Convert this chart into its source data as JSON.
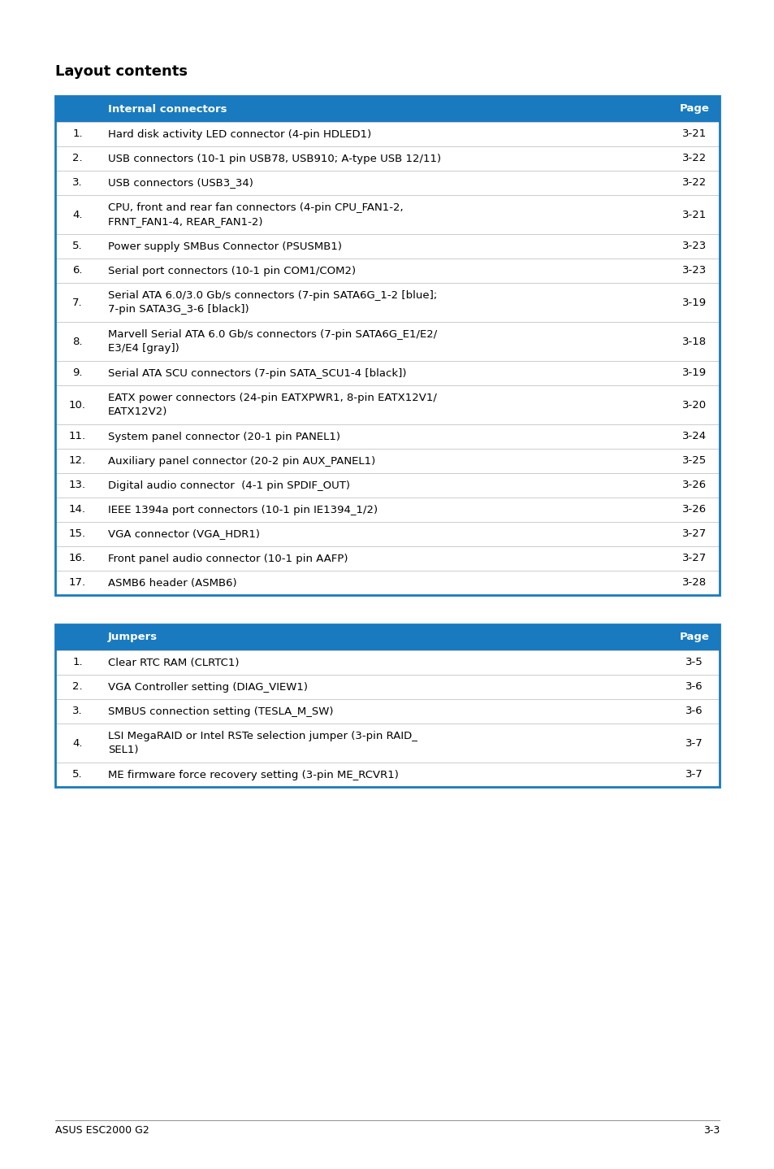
{
  "title": "Layout contents",
  "header_bg": "#1a7abf",
  "header_text_color": "#ffffff",
  "border_color": "#1a7abf",
  "divider_color": "#cccccc",
  "text_color": "#000000",
  "footer_left": "ASUS ESC2000 G2",
  "footer_right": "3-3",
  "table1_header": [
    "Internal connectors",
    "Page"
  ],
  "table1_rows": [
    [
      "1.",
      "Hard disk activity LED connector (4-pin HDLED1)",
      "3-21"
    ],
    [
      "2.",
      "USB connectors (10-1 pin USB78, USB910; A-type USB 12/11)",
      "3-22"
    ],
    [
      "3.",
      "USB connectors (USB3_34)",
      "3-22"
    ],
    [
      "4.",
      "CPU, front and rear fan connectors (4-pin CPU_FAN1-2,\nFRNT_FAN1-4, REAR_FAN1-2)",
      "3-21"
    ],
    [
      "5.",
      "Power supply SMBus Connector (PSUSMB1)",
      "3-23"
    ],
    [
      "6.",
      "Serial port connectors (10-1 pin COM1/COM2)",
      "3-23"
    ],
    [
      "7.",
      "Serial ATA 6.0/3.0 Gb/s connectors (7-pin SATA6G_1-2 [blue];\n7-pin SATA3G_3-6 [black])",
      "3-19"
    ],
    [
      "8.",
      "Marvell Serial ATA 6.0 Gb/s connectors (7-pin SATA6G_E1/E2/\nE3/E4 [gray])",
      "3-18"
    ],
    [
      "9.",
      "Serial ATA SCU connectors (7-pin SATA_SCU1-4 [black])",
      "3-19"
    ],
    [
      "10.",
      "EATX power connectors (24-pin EATXPWR1, 8-pin EATX12V1/\nEATX12V2)",
      "3-20"
    ],
    [
      "11.",
      "System panel connector (20-1 pin PANEL1)",
      "3-24"
    ],
    [
      "12.",
      "Auxiliary panel connector (20-2 pin AUX_PANEL1)",
      "3-25"
    ],
    [
      "13.",
      "Digital audio connector  (4-1 pin SPDIF_OUT)",
      "3-26"
    ],
    [
      "14.",
      "IEEE 1394a port connectors (10-1 pin IE1394_1/2)",
      "3-26"
    ],
    [
      "15.",
      "VGA connector (VGA_HDR1)",
      "3-27"
    ],
    [
      "16.",
      "Front panel audio connector (10-1 pin AAFP)",
      "3-27"
    ],
    [
      "17.",
      "ASMB6 header (ASMB6)",
      "3-28"
    ]
  ],
  "table2_header": [
    "Jumpers",
    "Page"
  ],
  "table2_rows": [
    [
      "1.",
      "Clear RTC RAM (CLRTC1)",
      "3-5"
    ],
    [
      "2.",
      "VGA Controller setting (DIAG_VIEW1)",
      "3-6"
    ],
    [
      "3.",
      "SMBUS connection setting (TESLA_M_SW)",
      "3-6"
    ],
    [
      "4.",
      "LSI MegaRAID or Intel RSTe selection jumper (3-pin RAID_\nSEL1)",
      "3-7"
    ],
    [
      "5.",
      "ME firmware force recovery setting (3-pin ME_RCVR1)",
      "3-7"
    ]
  ]
}
